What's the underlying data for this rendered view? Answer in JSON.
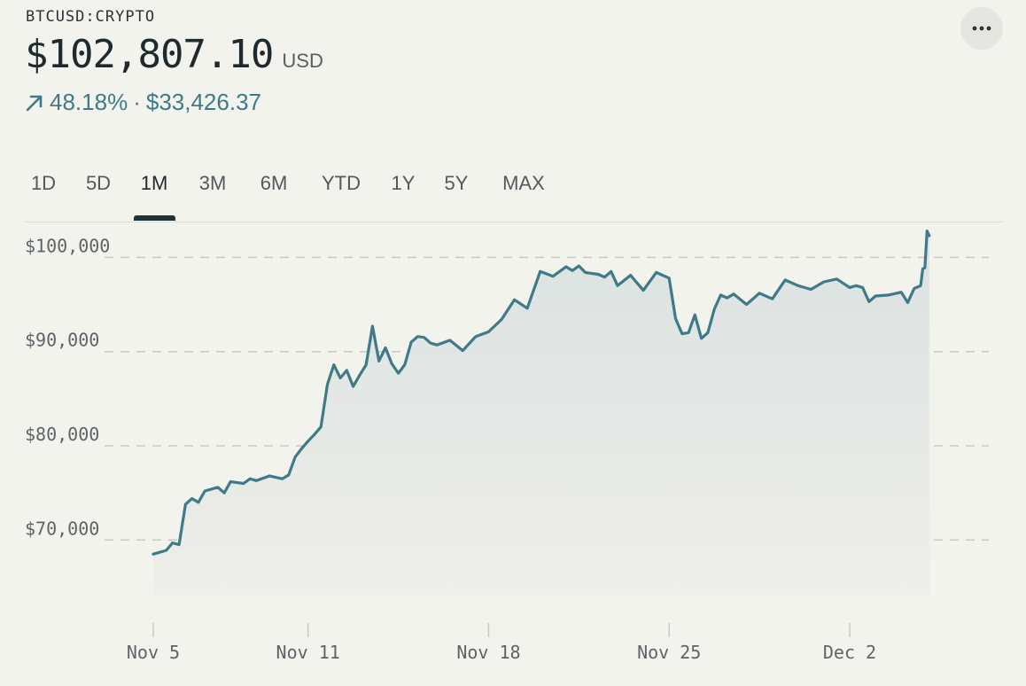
{
  "header": {
    "symbol": "BTCUSD:CRYPTO",
    "price": "$102,807.10",
    "currency": "USD",
    "change_percent": "48.18%",
    "change_separator": "·",
    "change_value": "$33,426.37",
    "trend_icon": "arrow-up-right-icon",
    "more_icon": "ellipsis-icon"
  },
  "tabs": [
    {
      "label": "1D"
    },
    {
      "label": "5D"
    },
    {
      "label": "1M",
      "active": true
    },
    {
      "label": "3M"
    },
    {
      "label": "6M"
    },
    {
      "label": "YTD"
    },
    {
      "label": "1Y"
    },
    {
      "label": "5Y"
    },
    {
      "label": "MAX"
    }
  ],
  "colors": {
    "line": "#3e7a87",
    "positive": "#3e7a87",
    "grid": "#c9c9c4",
    "area_top": "#dfe5e4",
    "background": "#f3f3ee"
  },
  "chart_data": {
    "type": "area",
    "title": "",
    "xlabel": "",
    "ylabel": "",
    "ylim": [
      64100,
      103800
    ],
    "xlim": [
      "2024-11-04",
      "2024-12-05"
    ],
    "yticks": [
      {
        "value": 70000,
        "label": "$70,000"
      },
      {
        "value": 80000,
        "label": "$80,000"
      },
      {
        "value": 90000,
        "label": "$90,000"
      },
      {
        "value": 100000,
        "label": "$100,000"
      }
    ],
    "xticks": [
      {
        "date": "2024-11-05",
        "label": "Nov 5"
      },
      {
        "date": "2024-11-11",
        "label": "Nov 11"
      },
      {
        "date": "2024-11-18",
        "label": "Nov 18"
      },
      {
        "date": "2024-11-25",
        "label": "Nov 25"
      },
      {
        "date": "2024-12-02",
        "label": "Dec 2"
      }
    ],
    "grid": true,
    "series": [
      {
        "x": [
          "2024-11-05 00:00",
          "2024-11-05 12:00",
          "2024-11-05 18:00",
          "2024-11-06 00:00",
          "2024-11-06 06:00",
          "2024-11-06 12:00",
          "2024-11-06 18:00",
          "2024-11-07 00:00",
          "2024-11-07 12:00",
          "2024-11-07 18:00",
          "2024-11-08 00:00",
          "2024-11-08 12:00",
          "2024-11-08 18:00",
          "2024-11-09 00:00",
          "2024-11-09 12:00",
          "2024-11-10 00:00",
          "2024-11-10 06:00",
          "2024-11-10 12:00",
          "2024-11-10 18:00",
          "2024-11-11 00:00",
          "2024-11-11 06:00",
          "2024-11-11 12:00",
          "2024-11-11 18:00",
          "2024-11-12 00:00",
          "2024-11-12 06:00",
          "2024-11-12 12:00",
          "2024-11-12 18:00",
          "2024-11-13 00:00",
          "2024-11-13 06:00",
          "2024-11-13 12:00",
          "2024-11-13 18:00",
          "2024-11-14 00:00",
          "2024-11-14 06:00",
          "2024-11-14 12:00",
          "2024-11-14 18:00",
          "2024-11-15 00:00",
          "2024-11-15 06:00",
          "2024-11-15 12:00",
          "2024-11-15 18:00",
          "2024-11-16 00:00",
          "2024-11-16 12:00",
          "2024-11-17 00:00",
          "2024-11-17 12:00",
          "2024-11-18 00:00",
          "2024-11-18 12:00",
          "2024-11-19 00:00",
          "2024-11-19 12:00",
          "2024-11-20 00:00",
          "2024-11-20 12:00",
          "2024-11-21 00:00",
          "2024-11-21 06:00",
          "2024-11-21 12:00",
          "2024-11-21 18:00",
          "2024-11-22 00:00",
          "2024-11-22 06:00",
          "2024-11-22 12:00",
          "2024-11-22 18:00",
          "2024-11-23 00:00",
          "2024-11-23 12:00",
          "2024-11-24 00:00",
          "2024-11-24 12:00",
          "2024-11-25 00:00",
          "2024-11-25 06:00",
          "2024-11-25 12:00",
          "2024-11-25 18:00",
          "2024-11-26 00:00",
          "2024-11-26 06:00",
          "2024-11-26 12:00",
          "2024-11-26 18:00",
          "2024-11-27 00:00",
          "2024-11-27 06:00",
          "2024-11-27 12:00",
          "2024-11-28 00:00",
          "2024-11-28 12:00",
          "2024-11-29 00:00",
          "2024-11-29 12:00",
          "2024-11-30 00:00",
          "2024-11-30 12:00",
          "2024-12-01 00:00",
          "2024-12-01 12:00",
          "2024-12-02 00:00",
          "2024-12-02 06:00",
          "2024-12-02 12:00",
          "2024-12-02 18:00",
          "2024-12-03 00:00",
          "2024-12-03 12:00",
          "2024-12-04 00:00",
          "2024-12-04 06:00",
          "2024-12-04 12:00",
          "2024-12-04 18:00",
          "2024-12-04 20:00",
          "2024-12-04 22:00",
          "2024-12-05 00:00",
          "2024-12-05 02:00"
        ],
        "values": [
          68500,
          68900,
          69700,
          69500,
          73800,
          74400,
          74000,
          75200,
          75600,
          75000,
          76200,
          76000,
          76500,
          76300,
          76800,
          76500,
          76900,
          78800,
          79700,
          80500,
          81200,
          82000,
          86500,
          88600,
          87200,
          88000,
          86300,
          87500,
          88600,
          92700,
          89000,
          90400,
          88700,
          87700,
          88600,
          91000,
          91600,
          91500,
          90900,
          90700,
          91200,
          90100,
          91600,
          92100,
          93400,
          95500,
          94600,
          98500,
          98000,
          99000,
          98600,
          99100,
          98400,
          98300,
          98200,
          97900,
          98500,
          97000,
          98100,
          96500,
          98400,
          97800,
          93500,
          91900,
          92000,
          93900,
          91400,
          92000,
          94500,
          96000,
          95700,
          96100,
          95000,
          96200,
          95600,
          97600,
          97000,
          96600,
          97400,
          97700,
          96800,
          97000,
          96800,
          95300,
          95900,
          96000,
          96300,
          95200,
          96700,
          97000,
          98800,
          98900,
          102800,
          102300
        ]
      }
    ]
  }
}
